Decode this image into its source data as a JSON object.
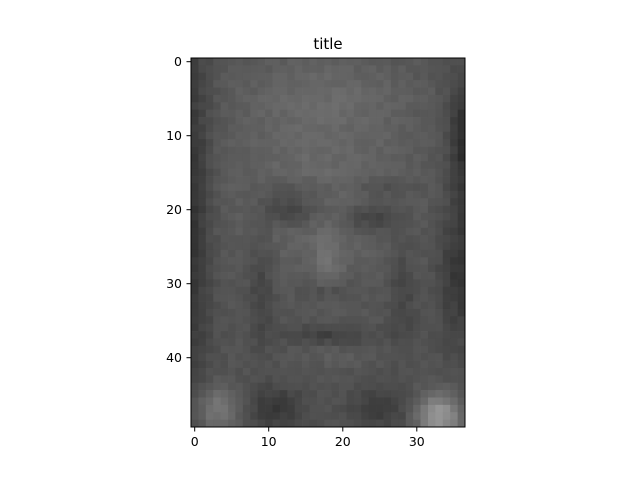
{
  "figure": {
    "title": "title",
    "description": "Grayscale low-resolution face image shown with imshow",
    "colormap": "gray",
    "background": "#ffffff",
    "image": {
      "columns": 37,
      "rows": 50
    },
    "x_ticks": [
      "0",
      "10",
      "20",
      "30"
    ],
    "y_ticks": [
      "0",
      "10",
      "20",
      "30",
      "40"
    ]
  }
}
